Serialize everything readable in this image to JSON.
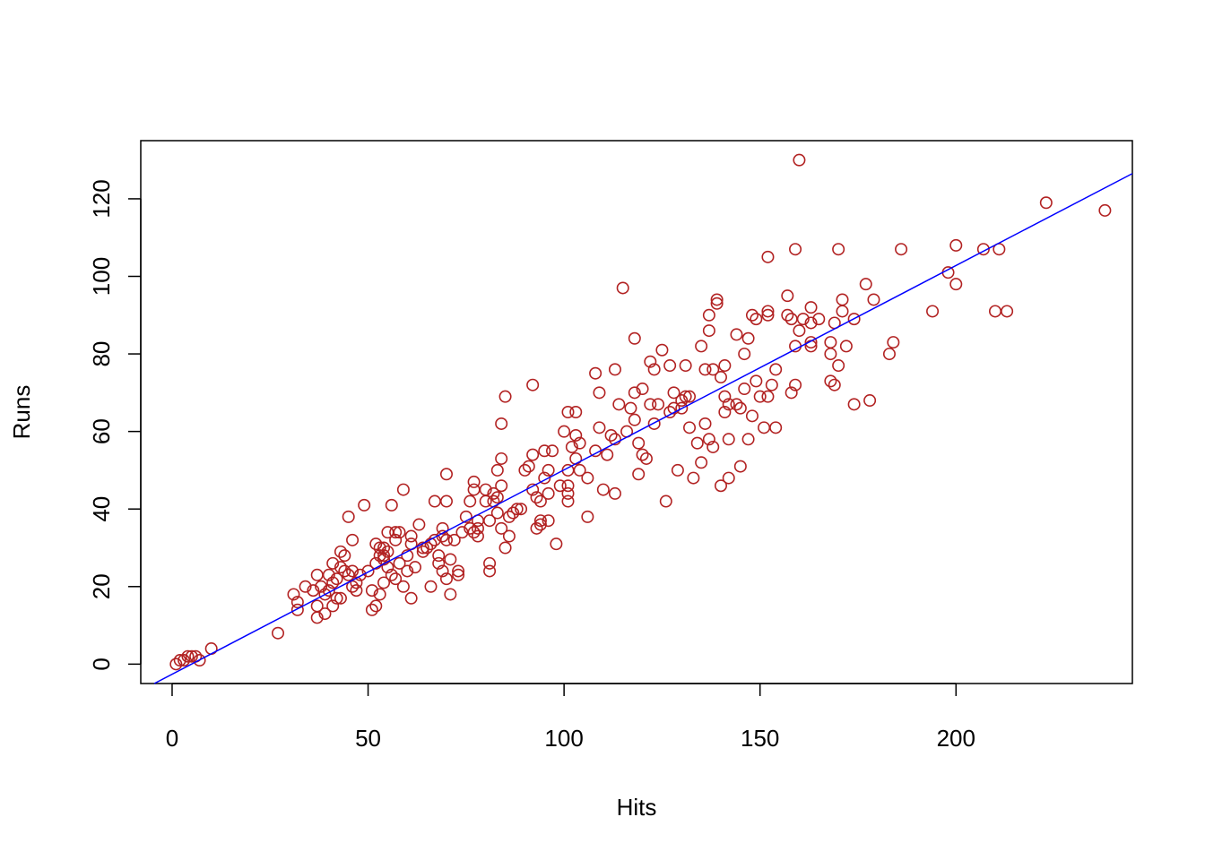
{
  "chart_data": {
    "type": "scatter",
    "title": "",
    "xlabel": "Hits",
    "ylabel": "Runs",
    "xlim": [
      -8,
      245
    ],
    "ylim": [
      -5,
      135
    ],
    "x_ticks": [
      0,
      50,
      100,
      150,
      200
    ],
    "y_ticks": [
      0,
      20,
      40,
      60,
      80,
      100,
      120
    ],
    "x_tick_labels": [
      "0",
      "50",
      "100",
      "150",
      "200"
    ],
    "y_tick_labels": [
      "0",
      "20",
      "40",
      "60",
      "80",
      "100",
      "120"
    ],
    "grid": false,
    "legend": "none",
    "point_color": "#B22222",
    "line_color": "#0000FF",
    "regression_line": {
      "intercept": -2.6,
      "slope": 0.527
    },
    "points": [
      [
        1,
        0
      ],
      [
        2,
        1
      ],
      [
        3,
        1
      ],
      [
        4,
        2
      ],
      [
        5,
        2
      ],
      [
        6,
        2
      ],
      [
        7,
        1
      ],
      [
        10,
        4
      ],
      [
        27,
        8
      ],
      [
        31,
        18
      ],
      [
        32,
        14
      ],
      [
        32,
        16
      ],
      [
        34,
        20
      ],
      [
        36,
        19
      ],
      [
        37,
        23
      ],
      [
        37,
        15
      ],
      [
        37,
        12
      ],
      [
        38,
        20
      ],
      [
        39,
        13
      ],
      [
        39,
        18
      ],
      [
        40,
        23
      ],
      [
        40,
        19
      ],
      [
        41,
        26
      ],
      [
        41,
        21
      ],
      [
        41,
        15
      ],
      [
        42,
        17
      ],
      [
        42,
        22
      ],
      [
        43,
        29
      ],
      [
        43,
        17
      ],
      [
        43,
        25
      ],
      [
        44,
        28
      ],
      [
        44,
        24
      ],
      [
        45,
        38
      ],
      [
        45,
        23
      ],
      [
        46,
        32
      ],
      [
        46,
        20
      ],
      [
        46,
        24
      ],
      [
        47,
        19
      ],
      [
        47,
        21
      ],
      [
        48,
        23
      ],
      [
        49,
        41
      ],
      [
        50,
        24
      ],
      [
        51,
        19
      ],
      [
        51,
        14
      ],
      [
        52,
        31
      ],
      [
        52,
        15
      ],
      [
        52,
        26
      ],
      [
        53,
        28
      ],
      [
        53,
        30
      ],
      [
        53,
        18
      ],
      [
        54,
        30
      ],
      [
        54,
        27
      ],
      [
        54,
        21
      ],
      [
        54,
        28
      ],
      [
        55,
        25
      ],
      [
        55,
        34
      ],
      [
        55,
        29
      ],
      [
        56,
        41
      ],
      [
        56,
        23
      ],
      [
        57,
        32
      ],
      [
        57,
        34
      ],
      [
        57,
        22
      ],
      [
        58,
        34
      ],
      [
        58,
        26
      ],
      [
        59,
        45
      ],
      [
        59,
        20
      ],
      [
        60,
        28
      ],
      [
        60,
        24
      ],
      [
        61,
        17
      ],
      [
        61,
        33
      ],
      [
        61,
        31
      ],
      [
        62,
        25
      ],
      [
        63,
        36
      ],
      [
        64,
        29
      ],
      [
        64,
        30
      ],
      [
        65,
        30
      ],
      [
        66,
        31
      ],
      [
        66,
        20
      ],
      [
        67,
        42
      ],
      [
        67,
        32
      ],
      [
        68,
        26
      ],
      [
        68,
        28
      ],
      [
        69,
        35
      ],
      [
        69,
        24
      ],
      [
        69,
        33
      ],
      [
        70,
        49
      ],
      [
        70,
        42
      ],
      [
        70,
        32
      ],
      [
        70,
        22
      ],
      [
        71,
        27
      ],
      [
        71,
        18
      ],
      [
        72,
        32
      ],
      [
        73,
        24
      ],
      [
        73,
        23
      ],
      [
        74,
        34
      ],
      [
        75,
        38
      ],
      [
        76,
        42
      ],
      [
        76,
        35
      ],
      [
        77,
        45
      ],
      [
        77,
        47
      ],
      [
        77,
        34
      ],
      [
        78,
        35
      ],
      [
        78,
        33
      ],
      [
        78,
        37
      ],
      [
        80,
        45
      ],
      [
        80,
        42
      ],
      [
        81,
        37
      ],
      [
        81,
        24
      ],
      [
        81,
        26
      ],
      [
        82,
        44
      ],
      [
        82,
        42
      ],
      [
        83,
        50
      ],
      [
        83,
        39
      ],
      [
        83,
        43
      ],
      [
        84,
        62
      ],
      [
        84,
        53
      ],
      [
        84,
        46
      ],
      [
        84,
        35
      ],
      [
        85,
        69
      ],
      [
        85,
        30
      ],
      [
        86,
        38
      ],
      [
        86,
        33
      ],
      [
        87,
        39
      ],
      [
        88,
        40
      ],
      [
        89,
        40
      ],
      [
        90,
        50
      ],
      [
        91,
        51
      ],
      [
        92,
        72
      ],
      [
        92,
        54
      ],
      [
        92,
        45
      ],
      [
        93,
        43
      ],
      [
        93,
        35
      ],
      [
        94,
        42
      ],
      [
        94,
        36
      ],
      [
        94,
        37
      ],
      [
        95,
        55
      ],
      [
        95,
        48
      ],
      [
        96,
        50
      ],
      [
        96,
        44
      ],
      [
        96,
        37
      ],
      [
        97,
        55
      ],
      [
        98,
        31
      ],
      [
        99,
        46
      ],
      [
        100,
        60
      ],
      [
        101,
        65
      ],
      [
        101,
        50
      ],
      [
        101,
        46
      ],
      [
        101,
        44
      ],
      [
        101,
        42
      ],
      [
        102,
        56
      ],
      [
        103,
        65
      ],
      [
        103,
        59
      ],
      [
        103,
        53
      ],
      [
        104,
        50
      ],
      [
        104,
        57
      ],
      [
        106,
        48
      ],
      [
        106,
        38
      ],
      [
        108,
        75
      ],
      [
        108,
        55
      ],
      [
        109,
        70
      ],
      [
        109,
        61
      ],
      [
        110,
        45
      ],
      [
        111,
        54
      ],
      [
        112,
        59
      ],
      [
        113,
        76
      ],
      [
        113,
        58
      ],
      [
        113,
        44
      ],
      [
        114,
        67
      ],
      [
        115,
        97
      ],
      [
        116,
        60
      ],
      [
        117,
        66
      ],
      [
        118,
        84
      ],
      [
        118,
        70
      ],
      [
        118,
        63
      ],
      [
        119,
        57
      ],
      [
        119,
        49
      ],
      [
        120,
        71
      ],
      [
        120,
        54
      ],
      [
        121,
        53
      ],
      [
        122,
        78
      ],
      [
        122,
        67
      ],
      [
        123,
        76
      ],
      [
        123,
        62
      ],
      [
        124,
        67
      ],
      [
        125,
        81
      ],
      [
        126,
        42
      ],
      [
        127,
        77
      ],
      [
        127,
        65
      ],
      [
        128,
        70
      ],
      [
        128,
        66
      ],
      [
        129,
        50
      ],
      [
        130,
        68
      ],
      [
        130,
        66
      ],
      [
        131,
        77
      ],
      [
        131,
        69
      ],
      [
        132,
        69
      ],
      [
        132,
        61
      ],
      [
        133,
        48
      ],
      [
        134,
        57
      ],
      [
        135,
        82
      ],
      [
        135,
        52
      ],
      [
        136,
        76
      ],
      [
        136,
        62
      ],
      [
        137,
        86
      ],
      [
        137,
        58
      ],
      [
        137,
        90
      ],
      [
        138,
        76
      ],
      [
        138,
        56
      ],
      [
        139,
        94
      ],
      [
        139,
        93
      ],
      [
        140,
        74
      ],
      [
        140,
        46
      ],
      [
        141,
        77
      ],
      [
        141,
        69
      ],
      [
        141,
        65
      ],
      [
        142,
        67
      ],
      [
        142,
        58
      ],
      [
        142,
        48
      ],
      [
        144,
        85
      ],
      [
        144,
        67
      ],
      [
        145,
        51
      ],
      [
        145,
        66
      ],
      [
        146,
        80
      ],
      [
        146,
        71
      ],
      [
        147,
        84
      ],
      [
        147,
        58
      ],
      [
        148,
        90
      ],
      [
        148,
        64
      ],
      [
        149,
        89
      ],
      [
        149,
        73
      ],
      [
        150,
        69
      ],
      [
        151,
        61
      ],
      [
        152,
        69
      ],
      [
        152,
        105
      ],
      [
        152,
        91
      ],
      [
        152,
        90
      ],
      [
        153,
        72
      ],
      [
        154,
        76
      ],
      [
        154,
        61
      ],
      [
        157,
        95
      ],
      [
        157,
        90
      ],
      [
        158,
        89
      ],
      [
        158,
        70
      ],
      [
        159,
        107
      ],
      [
        159,
        82
      ],
      [
        159,
        72
      ],
      [
        160,
        130
      ],
      [
        160,
        86
      ],
      [
        161,
        89
      ],
      [
        163,
        92
      ],
      [
        163,
        88
      ],
      [
        163,
        83
      ],
      [
        163,
        82
      ],
      [
        165,
        89
      ],
      [
        168,
        83
      ],
      [
        168,
        80
      ],
      [
        168,
        73
      ],
      [
        169,
        88
      ],
      [
        169,
        72
      ],
      [
        170,
        107
      ],
      [
        170,
        77
      ],
      [
        171,
        94
      ],
      [
        171,
        91
      ],
      [
        172,
        82
      ],
      [
        174,
        89
      ],
      [
        174,
        67
      ],
      [
        177,
        98
      ],
      [
        178,
        68
      ],
      [
        179,
        94
      ],
      [
        183,
        80
      ],
      [
        184,
        83
      ],
      [
        186,
        107
      ],
      [
        194,
        91
      ],
      [
        198,
        101
      ],
      [
        200,
        108
      ],
      [
        200,
        98
      ],
      [
        207,
        107
      ],
      [
        210,
        91
      ],
      [
        211,
        107
      ],
      [
        213,
        91
      ],
      [
        223,
        119
      ],
      [
        238,
        117
      ]
    ]
  }
}
